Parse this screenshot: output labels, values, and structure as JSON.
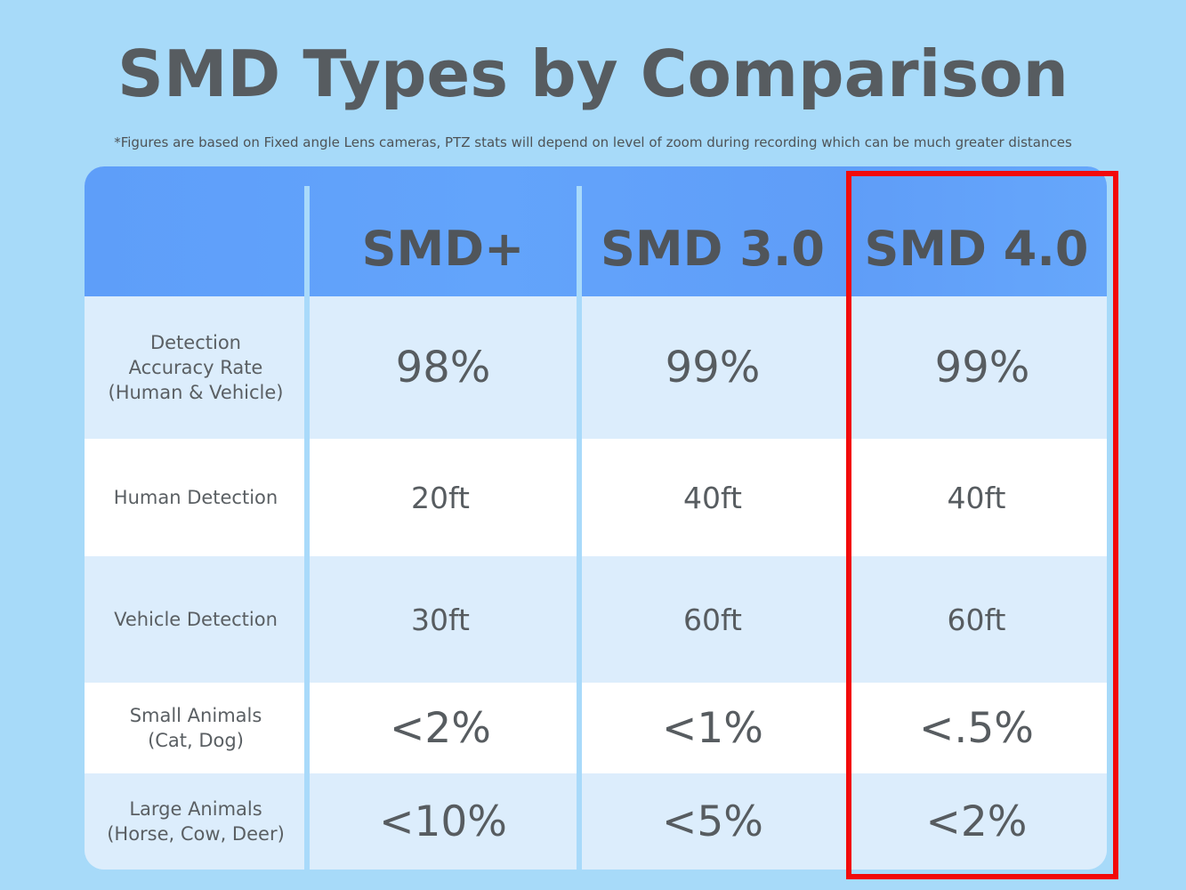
{
  "title": "SMD Types by Comparison",
  "subtitle": "*Figures are based on Fixed angle Lens cameras, PTZ stats will depend on level of zoom during recording which can be much greater distances",
  "columns": [
    "SMD+",
    "SMD 3.0",
    "SMD 4.0"
  ],
  "rows": [
    {
      "label": "Detection\nAccuracy Rate\n(Human & Vehicle)",
      "values": [
        "98%",
        "99%",
        "99%"
      ]
    },
    {
      "label": "Human Detection",
      "values": [
        "20ft",
        "40ft",
        "40ft"
      ]
    },
    {
      "label": "Vehicle Detection",
      "values": [
        "30ft",
        "60ft",
        "60ft"
      ]
    },
    {
      "label": "Small Animals\n(Cat, Dog)",
      "values": [
        "<2%",
        "<1%",
        "<.5%"
      ]
    },
    {
      "label": "Large Animals\n(Horse, Cow, Deer)",
      "values": [
        "<10%",
        "<5%",
        "<2%"
      ]
    }
  ],
  "colors": {
    "background": "#a7daf9",
    "header": "#63a4fb",
    "highlight_border": "#f20a0a"
  },
  "highlighted_column": "SMD 4.0"
}
